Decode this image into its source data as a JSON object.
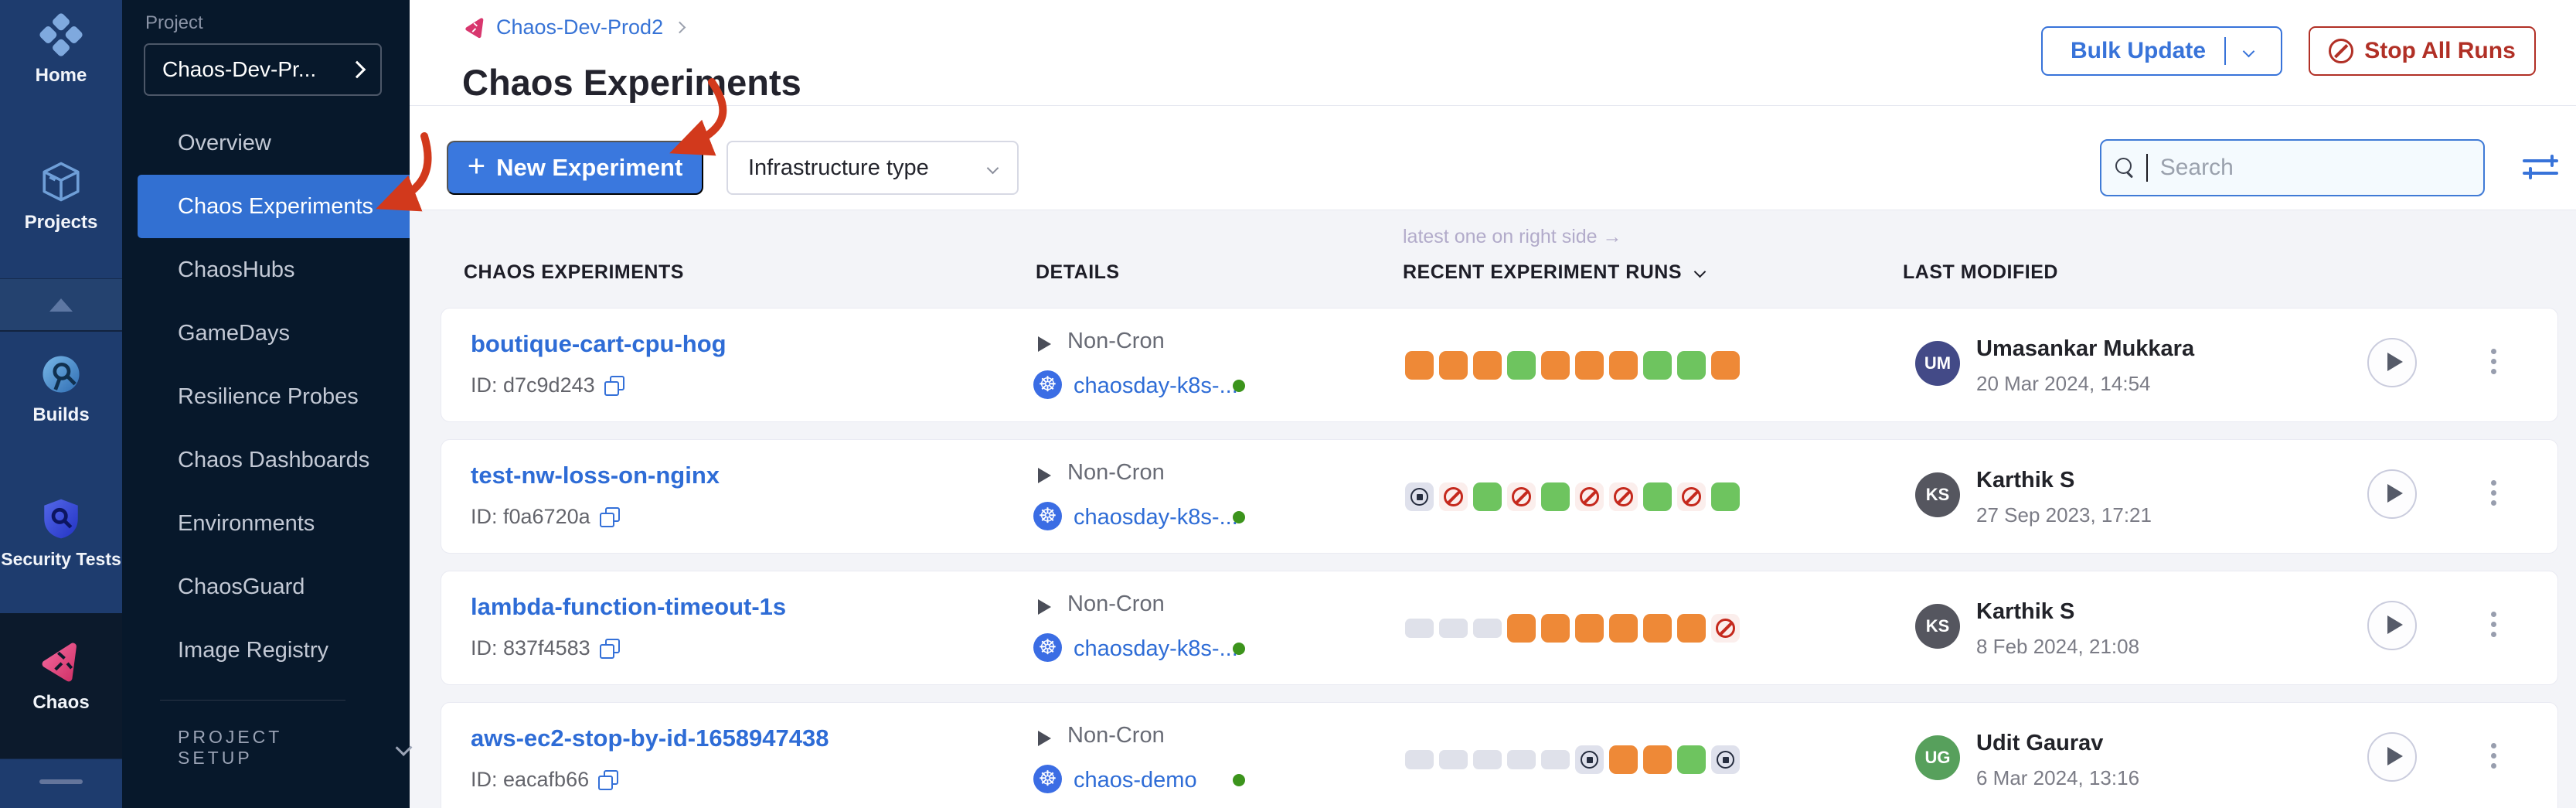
{
  "nav": {
    "modules": [
      {
        "label": "Home",
        "icon": "harness-logo-icon"
      },
      {
        "label": "Projects",
        "icon": "cube-icon"
      },
      {
        "label": "Builds",
        "icon": "builds-icon"
      },
      {
        "label": "Security Tests",
        "icon": "shield-icon"
      },
      {
        "label": "Chaos",
        "icon": "chaos-icon",
        "selected": true
      }
    ]
  },
  "sidebar": {
    "project_label": "Project",
    "project_name": "Chaos-Dev-Pr...",
    "items": [
      {
        "label": "Overview"
      },
      {
        "label": "Chaos Experiments",
        "selected": true
      },
      {
        "label": "ChaosHubs"
      },
      {
        "label": "GameDays"
      },
      {
        "label": "Resilience Probes"
      },
      {
        "label": "Chaos Dashboards"
      },
      {
        "label": "Environments"
      },
      {
        "label": "ChaosGuard"
      },
      {
        "label": "Image Registry"
      }
    ],
    "project_setup_label": "PROJECT SETUP"
  },
  "header": {
    "breadcrumb": "Chaos-Dev-Prod2",
    "title": "Chaos Experiments",
    "bulk_update_label": "Bulk Update",
    "stop_all_label": "Stop All Runs"
  },
  "toolbar": {
    "new_experiment_label": "New Experiment",
    "new_experiment_plus": "+",
    "infra_type_label": "Infrastructure type",
    "search_placeholder": "Search"
  },
  "table": {
    "note": "latest one on right side →",
    "columns": [
      "CHAOS EXPERIMENTS",
      "DETAILS",
      "RECENT EXPERIMENT RUNS",
      "LAST MODIFIED"
    ],
    "rows": [
      {
        "name": "boutique-cart-cpu-hog",
        "id": "ID: d7c9d243",
        "schedule": "Non-Cron",
        "infra": "chaosday-k8s-...",
        "runs": [
          "failed",
          "failed",
          "failed",
          "success",
          "failed",
          "failed",
          "failed",
          "success",
          "success",
          "failed"
        ],
        "user": "Umasankar Mukkara",
        "initials": "UM",
        "avatar_color": "#434a87",
        "date": "20 Mar 2024, 14:54"
      },
      {
        "name": "test-nw-loss-on-nginx",
        "id": "ID: f0a6720a",
        "schedule": "Non-Cron",
        "infra": "chaosday-k8s-...",
        "runs": [
          "stopped",
          "error",
          "success",
          "error",
          "success",
          "error",
          "error",
          "success",
          "error",
          "success"
        ],
        "user": "Karthik S",
        "initials": "KS",
        "avatar_color": "#55565f",
        "date": "27 Sep 2023, 17:21"
      },
      {
        "name": "lambda-function-timeout-1s",
        "id": "ID: 837f4583",
        "schedule": "Non-Cron",
        "infra": "chaosday-k8s-...",
        "runs": [
          "empty",
          "empty",
          "empty",
          "failed",
          "failed",
          "failed",
          "failed",
          "failed",
          "failed",
          "error"
        ],
        "user": "Karthik S",
        "initials": "KS",
        "avatar_color": "#55565f",
        "date": "8 Feb 2024, 21:08"
      },
      {
        "name": "aws-ec2-stop-by-id-1658947438",
        "id": "ID: eacafb66",
        "schedule": "Non-Cron",
        "infra": "chaos-demo",
        "runs": [
          "empty",
          "empty",
          "empty",
          "empty",
          "empty",
          "stopped",
          "failed",
          "failed",
          "success",
          "stopped"
        ],
        "user": "Udit Gaurav",
        "initials": "UG",
        "avatar_color": "#57a05c",
        "date": "6 Mar 2024, 13:16"
      }
    ]
  },
  "colors": {
    "rail_navy": "#1e3c6e",
    "sidebar_navy": "#07182b",
    "selected_blue": "#3270d2",
    "primary_blue": "#3a78de",
    "link_blue": "#2e6cd6",
    "danger_red": "#b13026",
    "success_green": "#6ec45f",
    "fail_orange": "#ee8937",
    "error_red": "#c5291d",
    "stopped_gray": "#dfe1ec",
    "empty_gray": "#dfe1ea",
    "infra_dot_green": "#3c941c",
    "annotation_red": "#d2391c",
    "table_bg": "#f3f4f8"
  }
}
